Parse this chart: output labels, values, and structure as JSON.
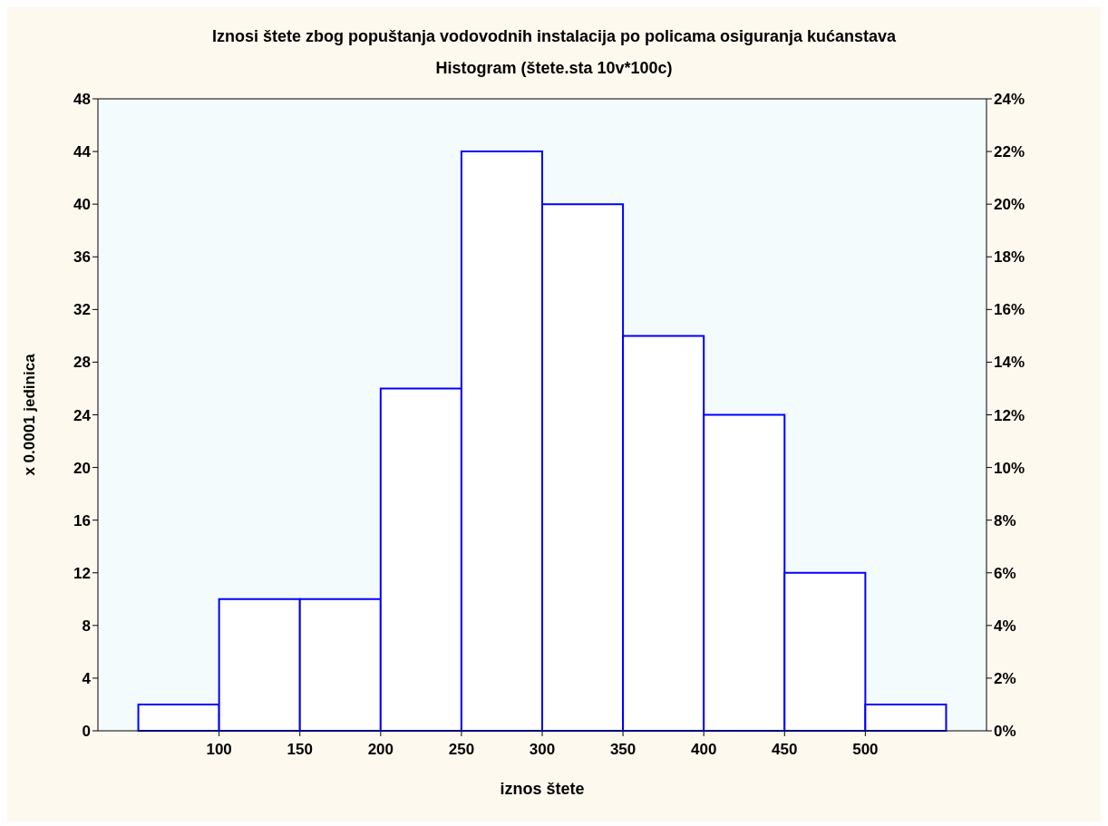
{
  "chart_data": {
    "type": "histogram",
    "title": "Iznosi štete zbog popuštanja vodovodnih instalacija po policama osiguranja kućanstava",
    "subtitle": "Histogram (štete.sta 10v*100c)",
    "xlabel": "iznos štete",
    "ylabel": "x 0.0001 jedinica",
    "bins": [
      50,
      100,
      150,
      200,
      250,
      300,
      350,
      400,
      450,
      500,
      550
    ],
    "values": [
      2,
      10,
      10,
      26,
      44,
      40,
      30,
      24,
      12,
      2
    ],
    "color": "#0000ff",
    "xlim": [
      25,
      575
    ],
    "xticks": [
      100,
      150,
      200,
      250,
      300,
      350,
      400,
      450,
      500
    ],
    "ylim": [
      0,
      48
    ],
    "yticks": [
      0,
      4,
      8,
      12,
      16,
      20,
      24,
      28,
      32,
      36,
      40,
      44,
      48
    ],
    "y2lim": [
      0,
      24
    ],
    "y2ticks": [
      {
        "value": 0,
        "label": "0%"
      },
      {
        "value": 2,
        "label": "2%"
      },
      {
        "value": 4,
        "label": "4%"
      },
      {
        "value": 6,
        "label": "6%"
      },
      {
        "value": 8,
        "label": "8%"
      },
      {
        "value": 10,
        "label": "10%"
      },
      {
        "value": 12,
        "label": "12%"
      },
      {
        "value": 14,
        "label": "14%"
      },
      {
        "value": 16,
        "label": "16%"
      },
      {
        "value": 18,
        "label": "18%"
      },
      {
        "value": 20,
        "label": "20%"
      },
      {
        "value": 22,
        "label": "22%"
      },
      {
        "value": 24,
        "label": "24%"
      }
    ],
    "grid": false
  }
}
